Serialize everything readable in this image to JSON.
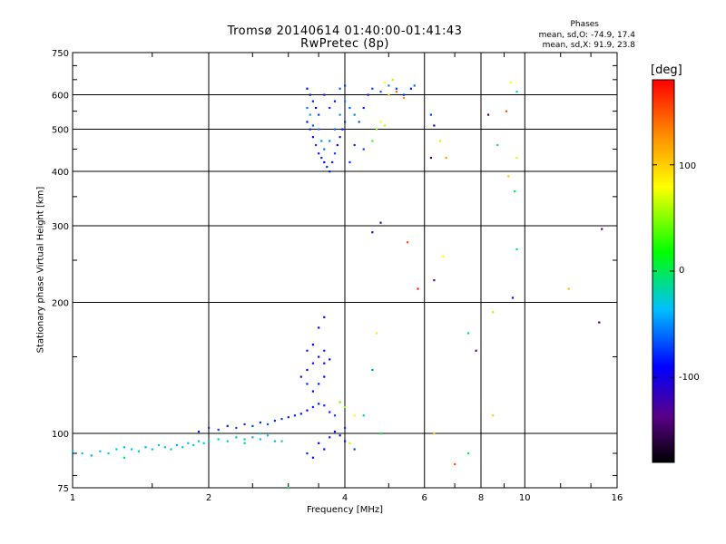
{
  "header": {
    "title_line1": "Tromsø 20140614 01:40:00-01:41:43",
    "title_line2": "RwPretec (8p)",
    "stats_title": "Phases",
    "stats_o": "mean, sd,O: -74.9, 17.4",
    "stats_x": "mean, sd,X:  91.9, 23.8"
  },
  "colorbar": {
    "label": "[deg]",
    "ticks": [
      "100",
      "0",
      "-100"
    ],
    "range": [
      -180,
      180
    ]
  },
  "chart_data": {
    "type": "scatter",
    "title": "Tromsø 20140614 01:40:00-01:41:43",
    "subtitle": "RwPretec (8p)",
    "xlabel": "Frequency [MHz]",
    "ylabel": "Stationary phase Virtual Height [km]",
    "xscale": "log",
    "yscale": "log",
    "xlim": [
      1,
      16
    ],
    "ylim": [
      75,
      750
    ],
    "xticks": [
      "1",
      "2",
      "4",
      "6",
      "8",
      "10",
      "16"
    ],
    "yticks": [
      "75",
      "100",
      "200",
      "300",
      "400",
      "500",
      "600",
      "750"
    ],
    "grid": true,
    "color_by": "phase [deg]",
    "points": [
      [
        1.0,
        91,
        -40
      ],
      [
        1.05,
        90,
        -30
      ],
      [
        1.1,
        89,
        -45
      ],
      [
        1.15,
        91,
        -35
      ],
      [
        1.2,
        90,
        -30
      ],
      [
        1.25,
        92,
        -40
      ],
      [
        1.3,
        93,
        -35
      ],
      [
        1.35,
        92,
        -40
      ],
      [
        1.4,
        91,
        -30
      ],
      [
        1.45,
        93,
        -45
      ],
      [
        1.5,
        92,
        -35
      ],
      [
        1.55,
        94,
        -30
      ],
      [
        1.6,
        93,
        -40
      ],
      [
        1.65,
        92,
        -35
      ],
      [
        1.7,
        94,
        -45
      ],
      [
        1.75,
        93,
        -30
      ],
      [
        1.8,
        95,
        -40
      ],
      [
        1.85,
        94,
        -35
      ],
      [
        1.9,
        96,
        -30
      ],
      [
        1.95,
        95,
        -40
      ],
      [
        2.0,
        96,
        -35
      ],
      [
        2.1,
        97,
        -30
      ],
      [
        2.2,
        96,
        -40
      ],
      [
        2.3,
        98,
        -35
      ],
      [
        2.4,
        97,
        -30
      ],
      [
        2.5,
        98,
        -45
      ],
      [
        2.6,
        97,
        -35
      ],
      [
        2.7,
        99,
        -40
      ],
      [
        2.8,
        96,
        -30
      ],
      [
        1.9,
        101,
        -90
      ],
      [
        2.0,
        103,
        -85
      ],
      [
        2.1,
        102,
        -80
      ],
      [
        2.2,
        104,
        -90
      ],
      [
        2.3,
        103,
        -75
      ],
      [
        2.4,
        105,
        -85
      ],
      [
        2.5,
        104,
        -80
      ],
      [
        2.6,
        106,
        -90
      ],
      [
        2.7,
        105,
        -75
      ],
      [
        2.8,
        107,
        -85
      ],
      [
        2.9,
        108,
        -80
      ],
      [
        3.0,
        109,
        -90
      ],
      [
        3.1,
        110,
        -85
      ],
      [
        3.2,
        111,
        -95
      ],
      [
        3.3,
        113,
        -100
      ],
      [
        3.4,
        115,
        -90
      ],
      [
        3.5,
        117,
        -95
      ],
      [
        3.6,
        116,
        -85
      ],
      [
        3.7,
        112,
        -90
      ],
      [
        3.8,
        110,
        -80
      ],
      [
        3.4,
        125,
        -100
      ],
      [
        3.5,
        130,
        -95
      ],
      [
        3.6,
        135,
        -100
      ],
      [
        3.3,
        140,
        -105
      ],
      [
        3.4,
        145,
        -95
      ],
      [
        3.5,
        150,
        -100
      ],
      [
        3.3,
        155,
        -90
      ],
      [
        3.4,
        160,
        -100
      ],
      [
        3.2,
        135,
        -95
      ],
      [
        3.3,
        130,
        -90
      ],
      [
        3.6,
        145,
        -100
      ],
      [
        3.7,
        148,
        -95
      ],
      [
        3.6,
        155,
        -90
      ],
      [
        3.5,
        175,
        -100
      ],
      [
        3.6,
        185,
        -95
      ],
      [
        3.5,
        95,
        -100
      ],
      [
        3.6,
        92,
        -95
      ],
      [
        3.7,
        98,
        -90
      ],
      [
        3.8,
        101,
        -100
      ],
      [
        3.9,
        99,
        -95
      ],
      [
        4.0,
        103,
        -80
      ],
      [
        3.3,
        90,
        -90
      ],
      [
        3.4,
        88,
        -100
      ],
      [
        2.4,
        95,
        -20
      ],
      [
        2.6,
        100,
        -30
      ],
      [
        2.9,
        96,
        -25
      ],
      [
        1.3,
        88,
        -20
      ],
      [
        3.0,
        75,
        -10
      ],
      [
        3.9,
        118,
        30
      ],
      [
        4.0,
        115,
        50
      ],
      [
        4.2,
        110,
        80
      ],
      [
        3.3,
        620,
        -100
      ],
      [
        3.35,
        600,
        -95
      ],
      [
        3.4,
        580,
        -90
      ],
      [
        3.45,
        560,
        -100
      ],
      [
        3.5,
        540,
        -85
      ],
      [
        3.3,
        520,
        -95
      ],
      [
        3.35,
        500,
        -90
      ],
      [
        3.4,
        480,
        -100
      ],
      [
        3.45,
        460,
        -80
      ],
      [
        3.5,
        440,
        -95
      ],
      [
        3.55,
        430,
        -90
      ],
      [
        3.6,
        420,
        -100
      ],
      [
        3.65,
        410,
        -85
      ],
      [
        3.7,
        400,
        -95
      ],
      [
        3.75,
        420,
        -90
      ],
      [
        3.8,
        440,
        -80
      ],
      [
        3.85,
        460,
        -95
      ],
      [
        3.9,
        480,
        -90
      ],
      [
        3.95,
        500,
        -100
      ],
      [
        4.0,
        520,
        -85
      ],
      [
        3.3,
        560,
        -60
      ],
      [
        3.35,
        540,
        -50
      ],
      [
        3.4,
        510,
        -70
      ],
      [
        3.5,
        500,
        -60
      ],
      [
        3.55,
        470,
        -55
      ],
      [
        3.6,
        450,
        -65
      ],
      [
        3.7,
        470,
        -60
      ],
      [
        3.8,
        500,
        -70
      ],
      [
        3.9,
        540,
        -55
      ],
      [
        4.0,
        580,
        -60
      ],
      [
        3.9,
        620,
        -70
      ],
      [
        4.0,
        630,
        -80
      ],
      [
        3.6,
        600,
        -90
      ],
      [
        3.7,
        560,
        -85
      ],
      [
        3.8,
        580,
        -95
      ],
      [
        4.1,
        560,
        -70
      ],
      [
        4.2,
        540,
        -60
      ],
      [
        4.3,
        520,
        -75
      ],
      [
        4.4,
        560,
        -90
      ],
      [
        4.5,
        600,
        -95
      ],
      [
        4.6,
        620,
        -80
      ],
      [
        4.8,
        610,
        -70
      ],
      [
        5.0,
        630,
        -60
      ],
      [
        5.2,
        620,
        -80
      ],
      [
        5.4,
        600,
        -90
      ],
      [
        5.6,
        620,
        -95
      ],
      [
        5.7,
        630,
        -70
      ],
      [
        4.4,
        450,
        -80
      ],
      [
        4.2,
        460,
        -90
      ],
      [
        4.1,
        420,
        -85
      ],
      [
        4.7,
        500,
        40
      ],
      [
        4.8,
        520,
        80
      ],
      [
        4.9,
        510,
        60
      ],
      [
        4.6,
        470,
        20
      ],
      [
        5.0,
        600,
        100
      ],
      [
        5.2,
        610,
        140
      ],
      [
        5.4,
        590,
        130
      ],
      [
        4.9,
        640,
        80
      ],
      [
        5.1,
        650,
        60
      ],
      [
        6.2,
        540,
        -80
      ],
      [
        6.3,
        510,
        -100
      ],
      [
        6.5,
        470,
        60
      ],
      [
        6.7,
        430,
        120
      ],
      [
        6.2,
        430,
        -150
      ],
      [
        4.8,
        305,
        -120
      ],
      [
        4.6,
        290,
        -110
      ],
      [
        5.5,
        275,
        150
      ],
      [
        6.6,
        255,
        80
      ],
      [
        5.8,
        215,
        170
      ],
      [
        6.3,
        225,
        -130
      ],
      [
        8.3,
        540,
        -150
      ],
      [
        8.7,
        460,
        -20
      ],
      [
        9.6,
        430,
        70
      ],
      [
        9.2,
        390,
        100
      ],
      [
        9.5,
        360,
        -10
      ],
      [
        9.6,
        265,
        -20
      ],
      [
        9.1,
        550,
        150
      ],
      [
        9.3,
        640,
        80
      ],
      [
        9.6,
        610,
        -30
      ],
      [
        9.4,
        205,
        -120
      ],
      [
        12.5,
        215,
        110
      ],
      [
        14.8,
        295,
        -140
      ],
      [
        14.6,
        180,
        -150
      ],
      [
        7.8,
        155,
        -140
      ],
      [
        7.5,
        170,
        -30
      ],
      [
        8.5,
        190,
        100
      ],
      [
        4.7,
        170,
        90
      ],
      [
        4.6,
        140,
        -60
      ],
      [
        4.4,
        110,
        -20
      ],
      [
        4.1,
        95,
        60
      ],
      [
        4.8,
        100,
        -10
      ],
      [
        6.3,
        100,
        100
      ],
      [
        7.0,
        85,
        150
      ],
      [
        7.5,
        90,
        -10
      ],
      [
        8.5,
        110,
        100
      ],
      [
        4.0,
        96,
        -90
      ],
      [
        4.2,
        92,
        -80
      ]
    ]
  }
}
